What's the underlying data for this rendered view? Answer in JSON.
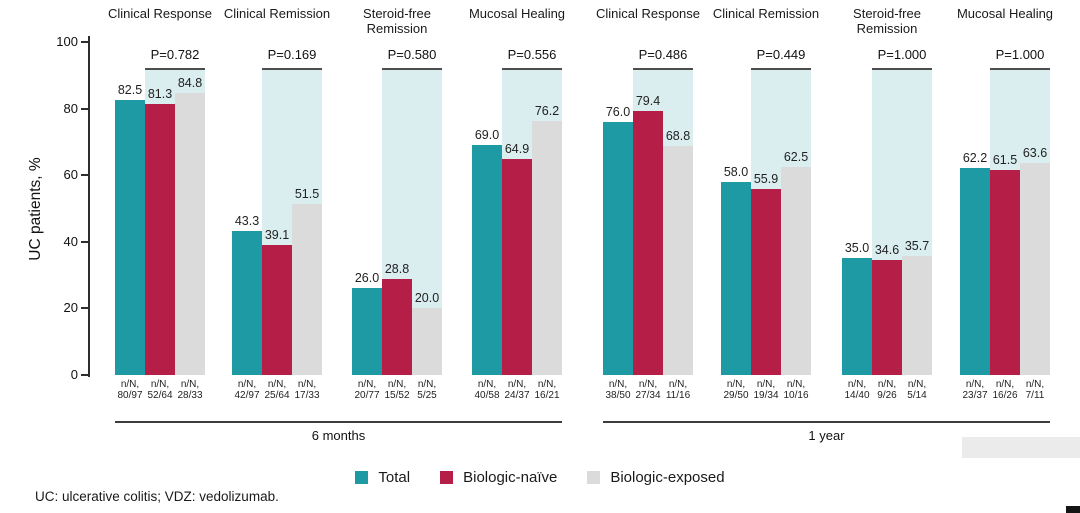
{
  "chart_data": {
    "type": "bar",
    "ylabel": "UC patients, %",
    "ylim": [
      0,
      100
    ],
    "yticks": [
      0,
      20,
      40,
      60,
      80,
      100
    ],
    "grid": false,
    "legend_position": "bottom",
    "n_prefix": "n/N,",
    "series_names": [
      "Total",
      "Biologic-naïve",
      "Biologic-exposed"
    ],
    "series_colors": [
      "#1e9aa5",
      "#b41e47",
      "#dcdbdb"
    ],
    "band_color": "#daedef",
    "periods": [
      {
        "label": "6 months",
        "groups": [
          {
            "label": "Clinical Response",
            "p_value": "P=0.782",
            "values": [
              82.5,
              81.3,
              84.8
            ],
            "n_over_N": [
              "80/97",
              "52/64",
              "28/33"
            ]
          },
          {
            "label": "Clinical Remission",
            "p_value": "P=0.169",
            "values": [
              43.3,
              39.1,
              51.5
            ],
            "n_over_N": [
              "42/97",
              "25/64",
              "17/33"
            ]
          },
          {
            "label": "Steroid-free Remission",
            "p_value": "P=0.580",
            "values": [
              26.0,
              28.8,
              20.0
            ],
            "n_over_N": [
              "20/77",
              "15/52",
              "5/25"
            ]
          },
          {
            "label": "Mucosal Healing",
            "p_value": "P=0.556",
            "values": [
              69.0,
              64.9,
              76.2
            ],
            "n_over_N": [
              "40/58",
              "24/37",
              "16/21"
            ]
          }
        ]
      },
      {
        "label": "1 year",
        "groups": [
          {
            "label": "Clinical Response",
            "p_value": "P=0.486",
            "values": [
              76.0,
              79.4,
              68.8
            ],
            "n_over_N": [
              "38/50",
              "27/34",
              "11/16"
            ]
          },
          {
            "label": "Clinical Remission",
            "p_value": "P=0.449",
            "values": [
              58.0,
              55.9,
              62.5
            ],
            "n_over_N": [
              "29/50",
              "19/34",
              "10/16"
            ]
          },
          {
            "label": "Steroid-free Remission",
            "p_value": "P=1.000",
            "values": [
              35.0,
              34.6,
              35.7
            ],
            "n_over_N": [
              "14/40",
              "9/26",
              "5/14"
            ]
          },
          {
            "label": "Mucosal Healing",
            "p_value": "P=1.000",
            "values": [
              62.2,
              61.5,
              63.6
            ],
            "n_over_N": [
              "23/37",
              "16/26",
              "7/11"
            ]
          }
        ]
      }
    ],
    "legend": [
      {
        "label": "Total",
        "color": "#1e9aa5"
      },
      {
        "label": "Biologic-naïve",
        "color": "#b41e47"
      },
      {
        "label": "Biologic-exposed",
        "color": "#dcdbdb"
      }
    ]
  },
  "footnote": "UC: ulcerative colitis; VDZ: vedolizumab."
}
